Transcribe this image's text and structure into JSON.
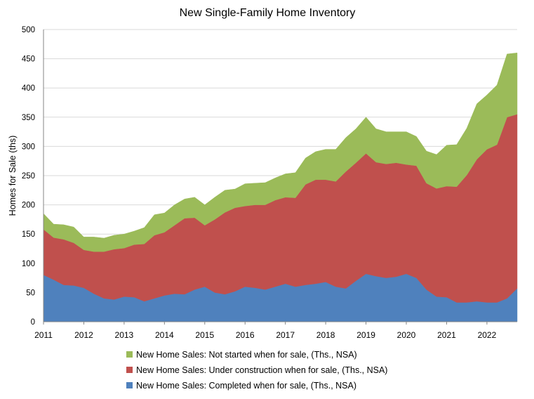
{
  "chart_data": {
    "type": "area",
    "stacked": true,
    "title": "New Single-Family Home Inventory",
    "xlabel": "",
    "ylabel": "Homes for Sale (ths)",
    "ylim": [
      0,
      500
    ],
    "yticks": [
      "0",
      "50",
      "100",
      "150",
      "200",
      "250",
      "300",
      "350",
      "400",
      "450",
      "500"
    ],
    "xlim": [
      2011,
      2022.75
    ],
    "xticks": [
      "2011",
      "2012",
      "2013",
      "2014",
      "2015",
      "2016",
      "2017",
      "2018",
      "2019",
      "2020",
      "2021",
      "2022"
    ],
    "grid": "horizontal",
    "legend_position": "bottom",
    "x": [
      2011.0,
      2011.25,
      2011.5,
      2011.75,
      2012.0,
      2012.25,
      2012.5,
      2012.75,
      2013.0,
      2013.25,
      2013.5,
      2013.75,
      2014.0,
      2014.25,
      2014.5,
      2014.75,
      2015.0,
      2015.25,
      2015.5,
      2015.75,
      2016.0,
      2016.25,
      2016.5,
      2016.75,
      2017.0,
      2017.25,
      2017.5,
      2017.75,
      2018.0,
      2018.25,
      2018.5,
      2018.75,
      2019.0,
      2019.25,
      2019.5,
      2019.75,
      2020.0,
      2020.25,
      2020.5,
      2020.75,
      2021.0,
      2021.25,
      2021.5,
      2021.75,
      2022.0,
      2022.25,
      2022.5,
      2022.75
    ],
    "series": [
      {
        "name": "New Home Sales: Completed when for sale, (Ths., NSA)",
        "color": "#4f81bd",
        "values": [
          80,
          72,
          63,
          62,
          58,
          48,
          40,
          38,
          43,
          42,
          35,
          40,
          45,
          48,
          47,
          55,
          60,
          50,
          47,
          52,
          60,
          58,
          55,
          60,
          65,
          60,
          63,
          65,
          68,
          60,
          57,
          70,
          82,
          78,
          75,
          77,
          82,
          75,
          55,
          43,
          42,
          33,
          33,
          35,
          33,
          33,
          40,
          57
        ]
      },
      {
        "name": "New Home Sales: Under construction when for sale, (Ths., NSA)",
        "color": "#c0504d",
        "values": [
          78,
          72,
          78,
          73,
          65,
          72,
          80,
          86,
          83,
          90,
          98,
          108,
          108,
          117,
          130,
          123,
          105,
          125,
          140,
          143,
          138,
          142,
          145,
          148,
          148,
          152,
          172,
          178,
          175,
          180,
          200,
          202,
          206,
          195,
          195,
          195,
          187,
          192,
          182,
          185,
          190,
          198,
          218,
          243,
          262,
          270,
          310,
          298
        ]
      },
      {
        "name": "New Home Sales: Not started when for sale, (Ths., NSA)",
        "color": "#9bbb59",
        "values": [
          27,
          23,
          25,
          27,
          22,
          25,
          23,
          24,
          24,
          23,
          28,
          35,
          33,
          35,
          33,
          35,
          35,
          38,
          38,
          32,
          38,
          37,
          38,
          38,
          40,
          43,
          45,
          48,
          52,
          55,
          58,
          58,
          62,
          57,
          55,
          53,
          56,
          50,
          55,
          58,
          70,
          72,
          80,
          95,
          93,
          102,
          108,
          105
        ]
      }
    ]
  }
}
